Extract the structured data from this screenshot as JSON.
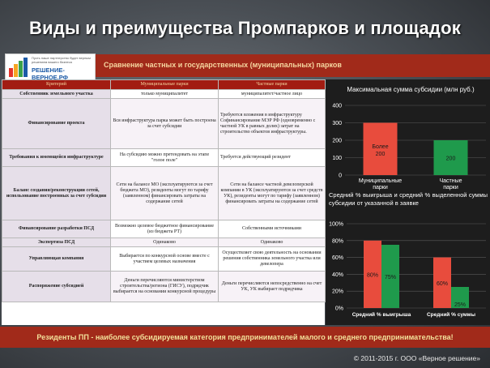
{
  "title": "Виды и преимущества Промпарков и площадок",
  "logo": {
    "tagline": "Пусть наше партнерство будет верным решением вашего бизнеса",
    "name": "РЕШЕНИЕ-ВЕРНОЕ.РФ"
  },
  "subtitle": "Сравнение частных и государственных (муниципальных) парков",
  "table": {
    "headers": [
      "Критерий",
      "Муниципальные парки",
      "Частные парки"
    ],
    "rows": [
      {
        "criterion": "Собственник земельного участка",
        "municipal": "только муниципалитет",
        "private": "муниципалитет/частное лицо"
      },
      {
        "criterion": "Финансирование проекта",
        "municipal": "Вся инфраструктура парка может быть построена за счет субсидии",
        "private": "Требуются вложения в инфраструктуру Софинансирование МЭР РФ (одновременно с частной УК в равных долях) затрат на строительство объектов инфраструктуры."
      },
      {
        "criterion": "Требования к имеющейся инфраструктуре",
        "municipal": "На субсидию можно претендовать на этапе \"голое поле\"",
        "private": "Требуется действующий резидент"
      },
      {
        "criterion": "Баланс создания/реконструкции сетей, использование построенных за счет субсидии",
        "municipal": "Сети на балансе МО (эксплуатируются за счет бюджета МО), резиденты могут по тарифу (заявленном) финансировать затраты на содержание сетей",
        "private": "Сети на балансе частной девелоперской компании в УК (эксплуатируются за счет средств УК), резиденты могут по тарифу (заявленном) финансировать затраты на содержание сетей"
      },
      {
        "criterion": "Финансирование разработки ПСД",
        "municipal": "Возможно целевое бюджетное финансирование (из бюджета РТ)",
        "private": "Собственными источниками"
      },
      {
        "criterion": "Экспертиза ПСД",
        "municipal": "Одинаково",
        "private": "Одинаково"
      },
      {
        "criterion": "Управляющая компания",
        "municipal": "Выбирается по конкурсной основе вместе с участием целевых назначения",
        "private": "Осуществляет свою деятельность на основании решения собственника земельного участка или девелопера"
      },
      {
        "criterion": "Распоряжение субсидией",
        "municipal": "Деньги перечисляются министерством строительства/региона (ГИСУ), подрядчик выбирается на основании конкурсной процедуры",
        "private": "Деньги перечисляются непосредственно на счет УК, УК выбирает подрядчика"
      }
    ]
  },
  "chart_data": [
    {
      "type": "bar",
      "title": "Максимальная сумма субсидии (млн руб.)",
      "categories": [
        "Муниципальные парки",
        "Частные парки"
      ],
      "values": [
        300,
        200
      ],
      "data_labels": [
        "Более 200",
        "200"
      ],
      "ylim": [
        0,
        400
      ],
      "yticks": [
        0,
        100,
        200,
        300,
        400
      ],
      "grid": true,
      "colors": [
        "#e84c3d",
        "#1f9a4c"
      ]
    },
    {
      "type": "bar",
      "title": "Средний % выигрыша и средний % выделенной суммы субсидии от указанной в заявке",
      "categories": [
        "Средний % выигрыша",
        "Средний % суммы"
      ],
      "series": [
        {
          "values": [
            80,
            60
          ],
          "color": "#e84c3d"
        },
        {
          "values": [
            75,
            25
          ],
          "color": "#1f9a4c"
        }
      ],
      "data_labels": [
        [
          "80%",
          "75%"
        ],
        [
          "60%",
          "25%"
        ]
      ],
      "ylim": [
        0,
        100
      ],
      "yticks": [
        "0%",
        "20%",
        "40%",
        "60%",
        "80%",
        "100%"
      ],
      "grid": true
    }
  ],
  "footer": "Резиденты ПП - наиболее субсидируемая категория предпринимателей малого и среднего предпринимательства!",
  "copyright": "© 2011-2015 г. ООО «Верное решение»"
}
